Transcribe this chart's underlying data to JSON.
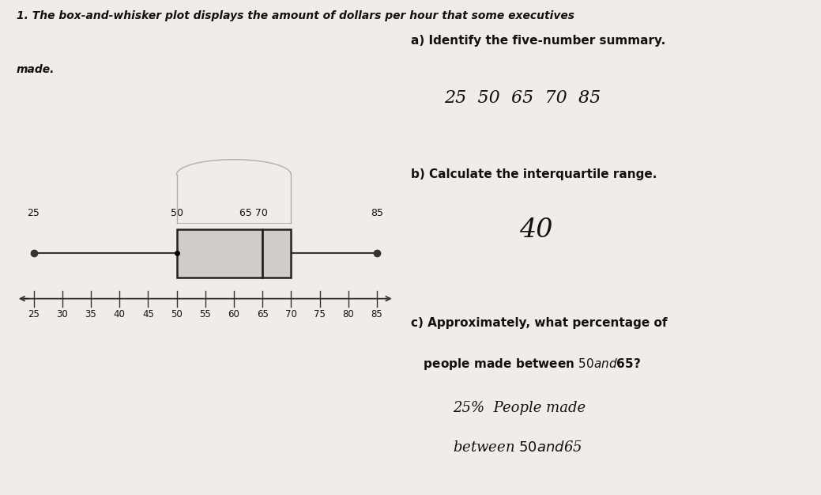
{
  "title_line1": "1. The box-and-whisker plot displays the amount of dollars per hour that some executives",
  "title_line2": "made.",
  "whisker_min": 25,
  "q1": 50,
  "median": 65,
  "q3": 70,
  "whisker_max": 85,
  "axis_min": 25,
  "axis_max": 85,
  "axis_ticks": [
    25,
    30,
    35,
    40,
    45,
    50,
    55,
    60,
    65,
    70,
    75,
    80,
    85
  ],
  "background_color": "#f0ede8",
  "box_fill": "#d0ccc8",
  "box_edge": "#222222",
  "whisker_color": "#333333",
  "text_color": "#111111",
  "question_a_bold": "a) Identify the five-number summary.",
  "question_b_bold": "b) Calculate the interquartile range.",
  "question_c_line1": "c) Approximately, what percentage of",
  "question_c_line2": "   people made between $50 and $65?"
}
